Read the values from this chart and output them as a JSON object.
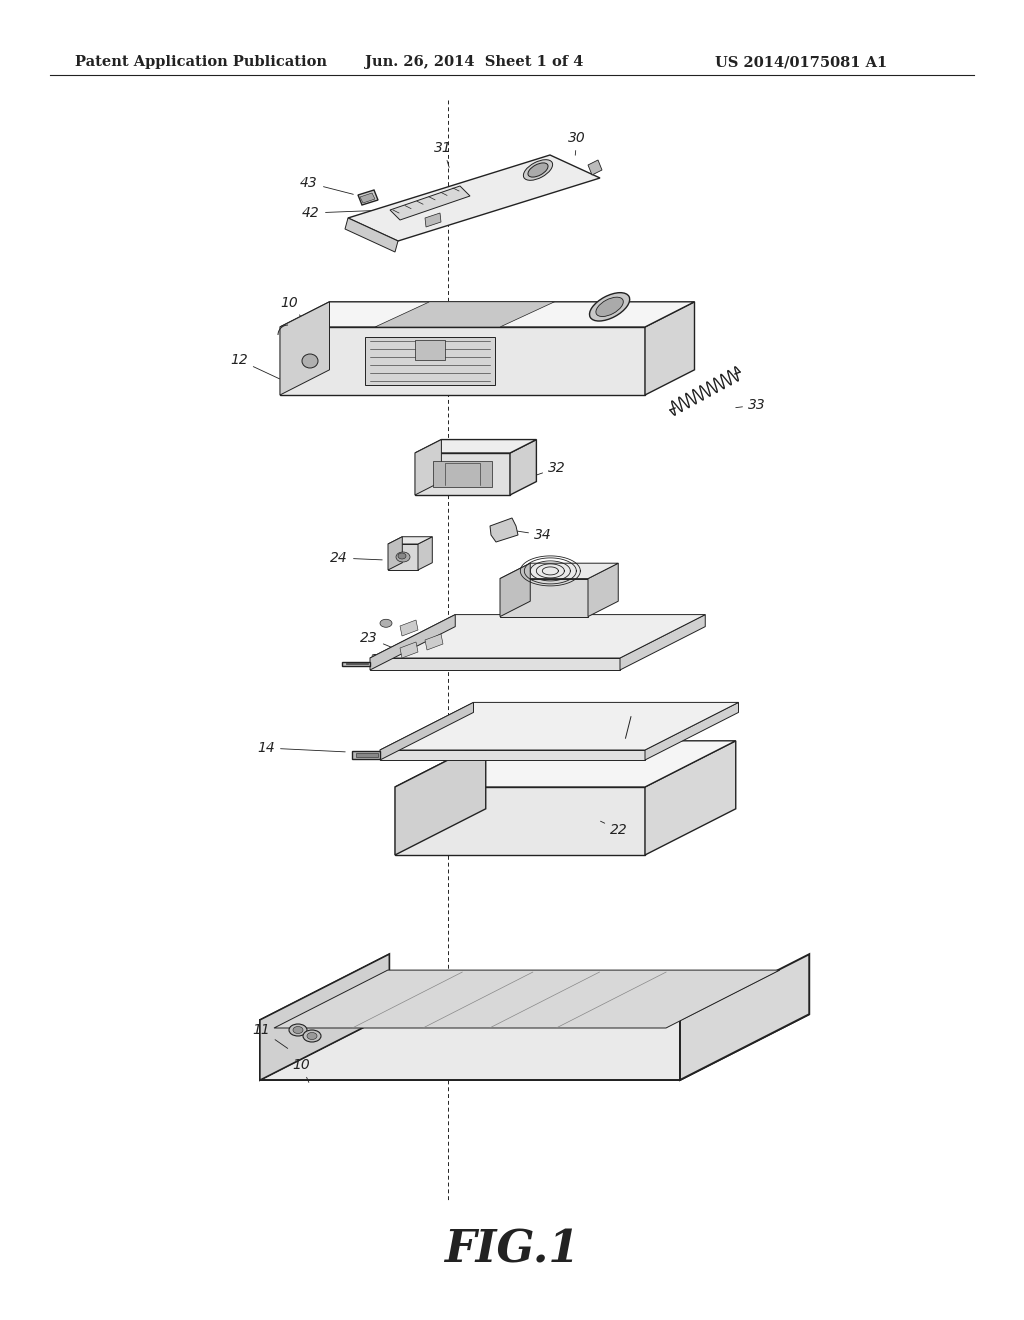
{
  "title_left": "Patent Application Publication",
  "title_mid": "Jun. 26, 2014  Sheet 1 of 4",
  "title_right": "US 2014/0175081 A1",
  "figure_label": "FIG.1",
  "background_color": "#ffffff",
  "line_color": "#222222",
  "text_color": "#222222",
  "header_fontsize": 10.5,
  "fig_label_fontsize": 32,
  "ref_fontsize": 10
}
